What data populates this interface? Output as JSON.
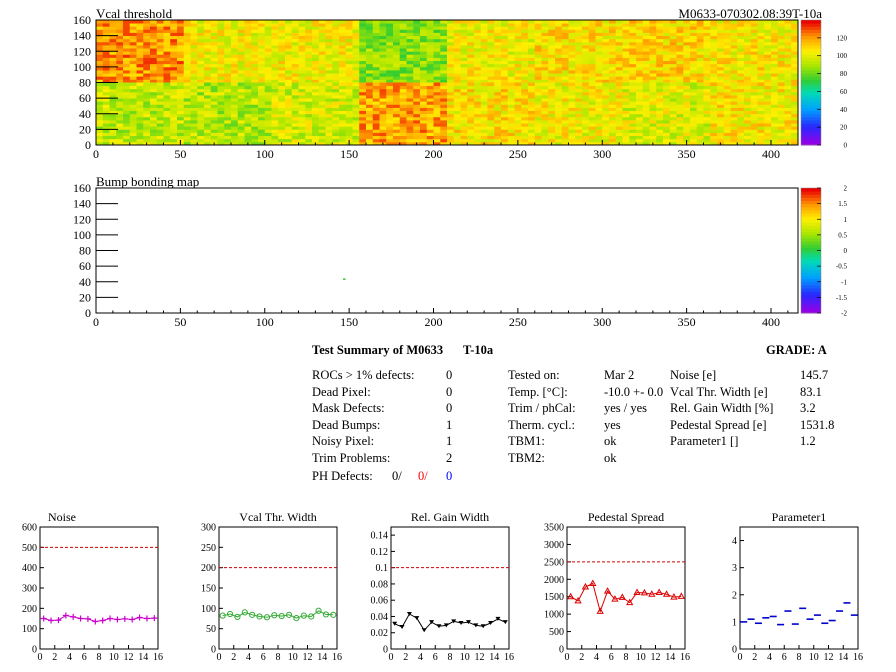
{
  "header": {
    "vcal_title": "Vcal threshold",
    "module_label": "M0633-070302.08:39T-10a",
    "bump_title": "Bump bonding map"
  },
  "maps": {
    "x_ticks": [
      "0",
      "50",
      "100",
      "150",
      "200",
      "250",
      "300",
      "350",
      "400"
    ],
    "y_ticks": [
      "0",
      "20",
      "40",
      "60",
      "80",
      "100",
      "120",
      "140",
      "160"
    ],
    "xlim": [
      0,
      416
    ],
    "ylim": [
      0,
      160
    ],
    "vcal_palette_labels": [
      "0",
      "20",
      "40",
      "60",
      "80",
      "100",
      "120"
    ],
    "vcal_palette_range": [
      0,
      140
    ],
    "bump_palette_labels": [
      "-2",
      "-1.5",
      "-1",
      "-0.5",
      "0",
      "0.5",
      "1",
      "1.5",
      "2"
    ],
    "bump_palette_range": [
      -2,
      2
    ],
    "bump_points": [
      {
        "x": 147,
        "y": 43
      }
    ]
  },
  "summary": {
    "title": "Test Summary of M0633",
    "temp_tag": "T-10a",
    "grade": "GRADE:  A",
    "left": [
      {
        "label": "ROCs > 1% defects:",
        "value": "0"
      },
      {
        "label": "Dead Pixel:",
        "value": "0"
      },
      {
        "label": "Mask Defects:",
        "value": "0"
      },
      {
        "label": "Dead Bumps:",
        "value": "1"
      },
      {
        "label": "Noisy Pixel:",
        "value": "1"
      },
      {
        "label": "Trim Problems:",
        "value": "2"
      }
    ],
    "ph_label": "PH Defects:",
    "ph_values": [
      "0/",
      "0/",
      "0"
    ],
    "ph_colors": [
      "#000000",
      "#ff0000",
      "#0000ff"
    ],
    "mid": [
      {
        "label": "Tested on:",
        "value": "Mar 2"
      },
      {
        "label": "Temp. [°C]:",
        "value": "-10.0 +- 0.0"
      },
      {
        "label": "Trim / phCal:",
        "value": "yes / yes"
      },
      {
        "label": "Therm. cycl.:",
        "value": "yes"
      },
      {
        "label": "TBM1:",
        "value": "ok"
      },
      {
        "label": "TBM2:",
        "value": "ok"
      }
    ],
    "right": [
      {
        "label": "Noise [e]",
        "value": "145.7"
      },
      {
        "label": "Vcal Thr. Width [e]",
        "value": "83.1"
      },
      {
        "label": "Rel. Gain Width [%]",
        "value": "3.2"
      },
      {
        "label": "Pedestal Spread [e]",
        "value": "1531.8"
      },
      {
        "label": "Parameter1 []",
        "value": "1.2"
      }
    ]
  },
  "chart_data": [
    {
      "type": "heatmap",
      "title": "Vcal threshold",
      "xlim": [
        0,
        416
      ],
      "ylim": [
        0,
        160
      ],
      "palette_range": [
        0,
        140
      ],
      "rocs": [
        {
          "x0": 0,
          "y0": 80,
          "mean": 122
        },
        {
          "x0": 52,
          "y0": 80,
          "mean": 104
        },
        {
          "x0": 104,
          "y0": 80,
          "mean": 104
        },
        {
          "x0": 156,
          "y0": 80,
          "mean": 86
        },
        {
          "x0": 208,
          "y0": 80,
          "mean": 104
        },
        {
          "x0": 260,
          "y0": 80,
          "mean": 108
        },
        {
          "x0": 312,
          "y0": 80,
          "mean": 110
        },
        {
          "x0": 364,
          "y0": 80,
          "mean": 106
        },
        {
          "x0": 0,
          "y0": 0,
          "mean": 94
        },
        {
          "x0": 52,
          "y0": 0,
          "mean": 92
        },
        {
          "x0": 104,
          "y0": 0,
          "mean": 98
        },
        {
          "x0": 156,
          "y0": 0,
          "mean": 120
        },
        {
          "x0": 208,
          "y0": 0,
          "mean": 108
        },
        {
          "x0": 260,
          "y0": 0,
          "mean": 104
        },
        {
          "x0": 312,
          "y0": 0,
          "mean": 100
        },
        {
          "x0": 364,
          "y0": 0,
          "mean": 106
        }
      ]
    },
    {
      "type": "heatmap",
      "title": "Bump bonding map",
      "xlim": [
        0,
        416
      ],
      "ylim": [
        0,
        160
      ],
      "palette_range": [
        -2,
        2
      ]
    },
    {
      "type": "line",
      "title": "Noise",
      "x": [
        0,
        1,
        2,
        3,
        4,
        5,
        6,
        7,
        8,
        9,
        10,
        11,
        12,
        13,
        14,
        15
      ],
      "values": [
        150,
        140,
        142,
        165,
        158,
        150,
        148,
        135,
        140,
        150,
        145,
        148,
        145,
        155,
        150,
        152
      ],
      "reference": 500,
      "ylim": [
        0,
        600
      ],
      "yticks": [
        "0",
        "100",
        "200",
        "300",
        "400",
        "500",
        "600"
      ],
      "xticks": [
        "0",
        "2",
        "4",
        "6",
        "8",
        "10",
        "12",
        "14",
        "16"
      ],
      "color": "#cc00cc",
      "marker": "plus"
    },
    {
      "type": "line",
      "title": "Vcal Thr. Width",
      "x": [
        0,
        1,
        2,
        3,
        4,
        5,
        6,
        7,
        8,
        9,
        10,
        11,
        12,
        13,
        14,
        15
      ],
      "values": [
        82,
        86,
        79,
        90,
        84,
        80,
        78,
        83,
        81,
        84,
        76,
        82,
        80,
        94,
        85,
        84
      ],
      "reference": 200,
      "ylim": [
        0,
        300
      ],
      "yticks": [
        "0",
        "50",
        "100",
        "150",
        "200",
        "250",
        "300"
      ],
      "xticks": [
        "0",
        "2",
        "4",
        "6",
        "8",
        "10",
        "12",
        "14",
        "16"
      ],
      "color": "#33aa33",
      "marker": "circle"
    },
    {
      "type": "line",
      "title": "Rel. Gain Width",
      "x": [
        0,
        1,
        2,
        3,
        4,
        5,
        6,
        7,
        8,
        9,
        10,
        11,
        12,
        13,
        14,
        15
      ],
      "values": [
        0.031,
        0.027,
        0.043,
        0.038,
        0.023,
        0.033,
        0.028,
        0.029,
        0.034,
        0.032,
        0.033,
        0.029,
        0.028,
        0.032,
        0.037,
        0.033
      ],
      "reference": 0.1,
      "ylim": [
        0,
        0.15
      ],
      "yticks": [
        "0",
        "0.02",
        "0.04",
        "0.06",
        "0.08",
        "0.1",
        "0.12",
        "0.14"
      ],
      "xticks": [
        "0",
        "2",
        "4",
        "6",
        "8",
        "10",
        "12",
        "14",
        "16"
      ],
      "color": "#000000",
      "marker": "triangle"
    },
    {
      "type": "line",
      "title": "Pedestal Spread",
      "x": [
        0,
        1,
        2,
        3,
        4,
        5,
        6,
        7,
        8,
        9,
        10,
        11,
        12,
        13,
        14,
        15
      ],
      "values": [
        1500,
        1380,
        1780,
        1880,
        1080,
        1660,
        1430,
        1480,
        1330,
        1620,
        1610,
        1570,
        1620,
        1570,
        1490,
        1510
      ],
      "reference": 2500,
      "ylim": [
        0,
        3500
      ],
      "yticks": [
        "0",
        "500",
        "1000",
        "1500",
        "2000",
        "2500",
        "3000",
        "3500"
      ],
      "xticks": [
        "0",
        "2",
        "4",
        "6",
        "8",
        "10",
        "12",
        "14",
        "16"
      ],
      "color": "#dd0000",
      "marker": "triangle-open"
    },
    {
      "type": "scatter",
      "title": "Parameter1",
      "x": [
        0,
        1,
        2,
        3,
        4,
        5,
        6,
        7,
        8,
        9,
        10,
        11,
        12,
        13,
        14,
        15
      ],
      "values": [
        1.0,
        1.1,
        0.95,
        1.15,
        1.2,
        0.9,
        1.4,
        0.92,
        1.5,
        1.1,
        1.25,
        0.95,
        1.05,
        1.4,
        1.7,
        1.25
      ],
      "ylim": [
        0,
        4.5
      ],
      "yticks": [
        "0",
        "1",
        "2",
        "3",
        "4"
      ],
      "xticks": [
        "0",
        "2",
        "4",
        "6",
        "8",
        "10",
        "12",
        "14",
        "16"
      ],
      "color": "#0000cc",
      "marker": "hbar"
    }
  ]
}
